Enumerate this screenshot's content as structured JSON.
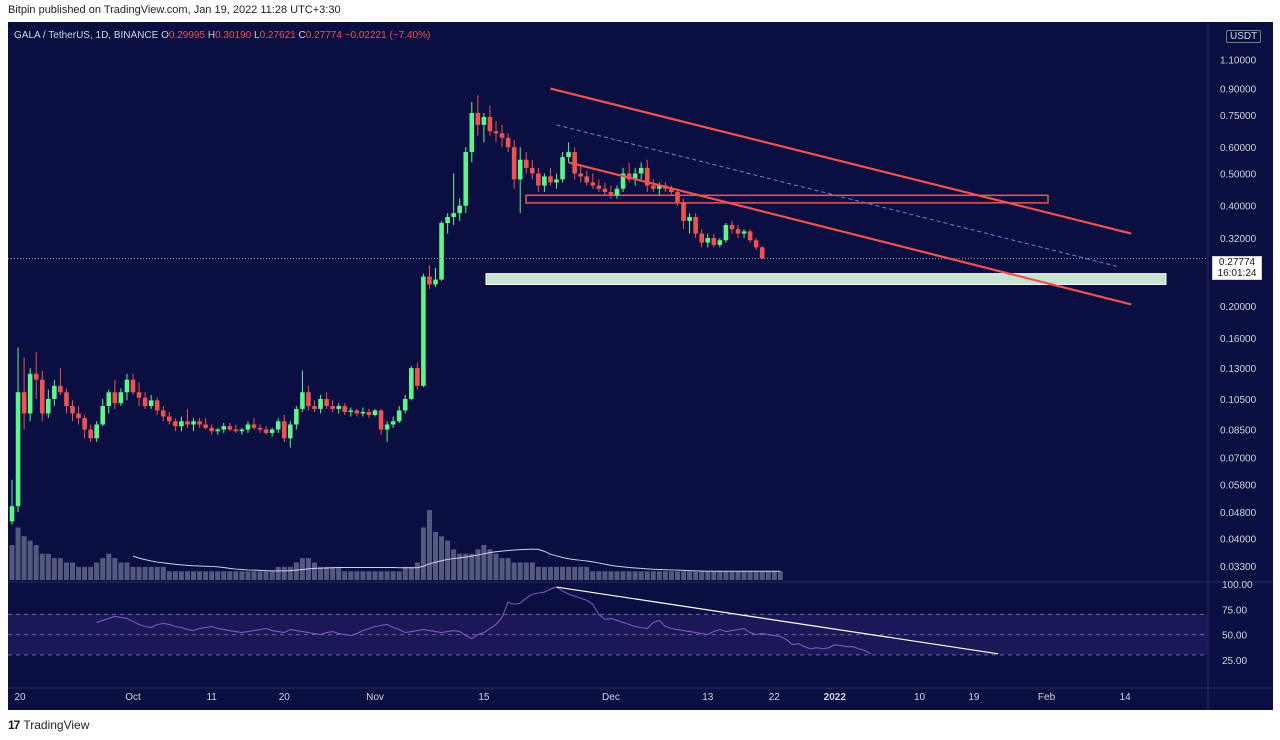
{
  "header": {
    "published_by": "Bitpin published on TradingView.com, Jan 19, 2022 11:28 UTC+3:30"
  },
  "symbol_legend": {
    "symbol": "GALA / TetherUS, 1D, BINANCE",
    "open_label": "O",
    "open": "0.29995",
    "high_label": "H",
    "high": "0.30190",
    "low_label": "L",
    "low": "0.27621",
    "close_label": "C",
    "close": "0.27774",
    "change": "−0.02221 (−7.40%)"
  },
  "price_axis": {
    "currency": "USDT",
    "current_price": "0.27774",
    "countdown": "16:01:24"
  },
  "footer": {
    "brand": "TradingView"
  },
  "colors": {
    "background": "#0a0e40",
    "up": "#5ef58a",
    "down": "#ef5350",
    "channel": "#ef5350",
    "support_zone_fill": "#c6e3d2",
    "rsi_line": "#7e57c2",
    "volume": "#6f7194"
  },
  "chart_data": [
    {
      "type": "candlestick",
      "title": "GALA / TetherUS, 1D, BINANCE",
      "scale": "log",
      "ylim": [
        0.03,
        1.35
      ],
      "y_ticks": [
        "1.10000",
        "0.90000",
        "0.75000",
        "0.60000",
        "0.50000",
        "0.40000",
        "0.32000",
        "0.20000",
        "0.16000",
        "0.13000",
        "0.10500",
        "0.08500",
        "0.07000",
        "0.05800",
        "0.04800",
        "0.04000",
        "0.03300"
      ],
      "y_tick_values": [
        1.1,
        0.9,
        0.75,
        0.6,
        0.5,
        0.4,
        0.32,
        0.2,
        0.16,
        0.13,
        0.105,
        0.085,
        0.07,
        0.058,
        0.048,
        0.04,
        0.033
      ],
      "x_ticks": [
        "20",
        "Oct",
        "11",
        "20",
        "Nov",
        "15",
        "Dec",
        "13",
        "22",
        "2022",
        "10",
        "19",
        "Feb",
        "14"
      ],
      "candles": [
        {
          "o": 0.045,
          "h": 0.06,
          "l": 0.044,
          "c": 0.05
        },
        {
          "o": 0.05,
          "h": 0.15,
          "l": 0.048,
          "c": 0.11
        },
        {
          "o": 0.11,
          "h": 0.14,
          "l": 0.085,
          "c": 0.095
        },
        {
          "o": 0.095,
          "h": 0.13,
          "l": 0.09,
          "c": 0.125
        },
        {
          "o": 0.125,
          "h": 0.145,
          "l": 0.105,
          "c": 0.12
        },
        {
          "o": 0.12,
          "h": 0.128,
          "l": 0.09,
          "c": 0.095
        },
        {
          "o": 0.095,
          "h": 0.112,
          "l": 0.092,
          "c": 0.105
        },
        {
          "o": 0.105,
          "h": 0.12,
          "l": 0.1,
          "c": 0.115
        },
        {
          "o": 0.115,
          "h": 0.13,
          "l": 0.108,
          "c": 0.11
        },
        {
          "o": 0.11,
          "h": 0.113,
          "l": 0.095,
          "c": 0.1
        },
        {
          "o": 0.1,
          "h": 0.104,
          "l": 0.09,
          "c": 0.095
        },
        {
          "o": 0.095,
          "h": 0.1,
          "l": 0.088,
          "c": 0.092
        },
        {
          "o": 0.092,
          "h": 0.094,
          "l": 0.08,
          "c": 0.085
        },
        {
          "o": 0.085,
          "h": 0.088,
          "l": 0.078,
          "c": 0.08
        },
        {
          "o": 0.08,
          "h": 0.09,
          "l": 0.078,
          "c": 0.088
        },
        {
          "o": 0.088,
          "h": 0.105,
          "l": 0.087,
          "c": 0.1
        },
        {
          "o": 0.1,
          "h": 0.112,
          "l": 0.095,
          "c": 0.11
        },
        {
          "o": 0.11,
          "h": 0.12,
          "l": 0.098,
          "c": 0.102
        },
        {
          "o": 0.102,
          "h": 0.113,
          "l": 0.1,
          "c": 0.11
        },
        {
          "o": 0.11,
          "h": 0.125,
          "l": 0.104,
          "c": 0.12
        },
        {
          "o": 0.12,
          "h": 0.125,
          "l": 0.108,
          "c": 0.11
        },
        {
          "o": 0.11,
          "h": 0.118,
          "l": 0.1,
          "c": 0.106
        },
        {
          "o": 0.106,
          "h": 0.11,
          "l": 0.098,
          "c": 0.1
        },
        {
          "o": 0.1,
          "h": 0.108,
          "l": 0.098,
          "c": 0.104
        },
        {
          "o": 0.104,
          "h": 0.106,
          "l": 0.094,
          "c": 0.097
        },
        {
          "o": 0.097,
          "h": 0.1,
          "l": 0.09,
          "c": 0.093
        },
        {
          "o": 0.093,
          "h": 0.096,
          "l": 0.088,
          "c": 0.09
        },
        {
          "o": 0.09,
          "h": 0.092,
          "l": 0.084,
          "c": 0.087
        },
        {
          "o": 0.087,
          "h": 0.093,
          "l": 0.084,
          "c": 0.09
        },
        {
          "o": 0.09,
          "h": 0.098,
          "l": 0.086,
          "c": 0.088
        },
        {
          "o": 0.088,
          "h": 0.092,
          "l": 0.084,
          "c": 0.09
        },
        {
          "o": 0.09,
          "h": 0.092,
          "l": 0.086,
          "c": 0.088
        },
        {
          "o": 0.088,
          "h": 0.092,
          "l": 0.085,
          "c": 0.086
        },
        {
          "o": 0.086,
          "h": 0.088,
          "l": 0.082,
          "c": 0.084
        },
        {
          "o": 0.084,
          "h": 0.086,
          "l": 0.082,
          "c": 0.085
        },
        {
          "o": 0.085,
          "h": 0.089,
          "l": 0.083,
          "c": 0.087
        },
        {
          "o": 0.087,
          "h": 0.089,
          "l": 0.084,
          "c": 0.085
        },
        {
          "o": 0.085,
          "h": 0.088,
          "l": 0.083,
          "c": 0.084
        },
        {
          "o": 0.084,
          "h": 0.086,
          "l": 0.082,
          "c": 0.085
        },
        {
          "o": 0.085,
          "h": 0.09,
          "l": 0.083,
          "c": 0.088
        },
        {
          "o": 0.088,
          "h": 0.092,
          "l": 0.085,
          "c": 0.086
        },
        {
          "o": 0.086,
          "h": 0.088,
          "l": 0.083,
          "c": 0.085
        },
        {
          "o": 0.085,
          "h": 0.087,
          "l": 0.082,
          "c": 0.083
        },
        {
          "o": 0.083,
          "h": 0.086,
          "l": 0.081,
          "c": 0.085
        },
        {
          "o": 0.085,
          "h": 0.092,
          "l": 0.083,
          "c": 0.09
        },
        {
          "o": 0.09,
          "h": 0.094,
          "l": 0.078,
          "c": 0.08
        },
        {
          "o": 0.08,
          "h": 0.09,
          "l": 0.075,
          "c": 0.088
        },
        {
          "o": 0.088,
          "h": 0.1,
          "l": 0.085,
          "c": 0.098
        },
        {
          "o": 0.098,
          "h": 0.128,
          "l": 0.096,
          "c": 0.11
        },
        {
          "o": 0.11,
          "h": 0.115,
          "l": 0.097,
          "c": 0.1
        },
        {
          "o": 0.1,
          "h": 0.104,
          "l": 0.096,
          "c": 0.098
        },
        {
          "o": 0.098,
          "h": 0.108,
          "l": 0.095,
          "c": 0.105
        },
        {
          "o": 0.105,
          "h": 0.11,
          "l": 0.098,
          "c": 0.1
        },
        {
          "o": 0.1,
          "h": 0.104,
          "l": 0.096,
          "c": 0.098
        },
        {
          "o": 0.098,
          "h": 0.102,
          "l": 0.095,
          "c": 0.1
        },
        {
          "o": 0.1,
          "h": 0.102,
          "l": 0.094,
          "c": 0.096
        },
        {
          "o": 0.096,
          "h": 0.099,
          "l": 0.093,
          "c": 0.097
        },
        {
          "o": 0.097,
          "h": 0.098,
          "l": 0.093,
          "c": 0.095
        },
        {
          "o": 0.095,
          "h": 0.099,
          "l": 0.093,
          "c": 0.096
        },
        {
          "o": 0.096,
          "h": 0.098,
          "l": 0.092,
          "c": 0.094
        },
        {
          "o": 0.094,
          "h": 0.098,
          "l": 0.093,
          "c": 0.097
        },
        {
          "o": 0.097,
          "h": 0.098,
          "l": 0.082,
          "c": 0.085
        },
        {
          "o": 0.085,
          "h": 0.09,
          "l": 0.078,
          "c": 0.088
        },
        {
          "o": 0.088,
          "h": 0.093,
          "l": 0.086,
          "c": 0.09
        },
        {
          "o": 0.09,
          "h": 0.1,
          "l": 0.089,
          "c": 0.097
        },
        {
          "o": 0.097,
          "h": 0.108,
          "l": 0.095,
          "c": 0.105
        },
        {
          "o": 0.105,
          "h": 0.132,
          "l": 0.104,
          "c": 0.13
        },
        {
          "o": 0.13,
          "h": 0.135,
          "l": 0.112,
          "c": 0.115
        },
        {
          "o": 0.115,
          "h": 0.25,
          "l": 0.114,
          "c": 0.245
        },
        {
          "o": 0.245,
          "h": 0.265,
          "l": 0.225,
          "c": 0.232
        },
        {
          "o": 0.232,
          "h": 0.26,
          "l": 0.228,
          "c": 0.24
        },
        {
          "o": 0.24,
          "h": 0.36,
          "l": 0.238,
          "c": 0.355
        },
        {
          "o": 0.355,
          "h": 0.38,
          "l": 0.33,
          "c": 0.37
        },
        {
          "o": 0.37,
          "h": 0.5,
          "l": 0.35,
          "c": 0.38
        },
        {
          "o": 0.38,
          "h": 0.42,
          "l": 0.36,
          "c": 0.4
        },
        {
          "o": 0.4,
          "h": 0.6,
          "l": 0.38,
          "c": 0.58
        },
        {
          "o": 0.58,
          "h": 0.82,
          "l": 0.54,
          "c": 0.76
        },
        {
          "o": 0.76,
          "h": 0.86,
          "l": 0.65,
          "c": 0.7
        },
        {
          "o": 0.7,
          "h": 0.76,
          "l": 0.62,
          "c": 0.74
        },
        {
          "o": 0.74,
          "h": 0.8,
          "l": 0.65,
          "c": 0.67
        },
        {
          "o": 0.67,
          "h": 0.72,
          "l": 0.62,
          "c": 0.66
        },
        {
          "o": 0.66,
          "h": 0.7,
          "l": 0.6,
          "c": 0.64
        },
        {
          "o": 0.64,
          "h": 0.66,
          "l": 0.58,
          "c": 0.6
        },
        {
          "o": 0.6,
          "h": 0.63,
          "l": 0.45,
          "c": 0.48
        },
        {
          "o": 0.48,
          "h": 0.6,
          "l": 0.38,
          "c": 0.55
        },
        {
          "o": 0.55,
          "h": 0.58,
          "l": 0.5,
          "c": 0.52
        },
        {
          "o": 0.52,
          "h": 0.55,
          "l": 0.48,
          "c": 0.5
        },
        {
          "o": 0.5,
          "h": 0.52,
          "l": 0.44,
          "c": 0.46
        },
        {
          "o": 0.46,
          "h": 0.5,
          "l": 0.44,
          "c": 0.49
        },
        {
          "o": 0.49,
          "h": 0.52,
          "l": 0.46,
          "c": 0.47
        },
        {
          "o": 0.47,
          "h": 0.5,
          "l": 0.45,
          "c": 0.48
        },
        {
          "o": 0.48,
          "h": 0.58,
          "l": 0.47,
          "c": 0.56
        },
        {
          "o": 0.56,
          "h": 0.62,
          "l": 0.54,
          "c": 0.58
        },
        {
          "o": 0.58,
          "h": 0.6,
          "l": 0.48,
          "c": 0.5
        },
        {
          "o": 0.5,
          "h": 0.53,
          "l": 0.47,
          "c": 0.49
        },
        {
          "o": 0.49,
          "h": 0.51,
          "l": 0.46,
          "c": 0.47
        },
        {
          "o": 0.47,
          "h": 0.5,
          "l": 0.45,
          "c": 0.46
        },
        {
          "o": 0.46,
          "h": 0.48,
          "l": 0.44,
          "c": 0.45
        },
        {
          "o": 0.45,
          "h": 0.47,
          "l": 0.43,
          "c": 0.44
        },
        {
          "o": 0.44,
          "h": 0.46,
          "l": 0.42,
          "c": 0.43
        },
        {
          "o": 0.43,
          "h": 0.46,
          "l": 0.42,
          "c": 0.45
        },
        {
          "o": 0.45,
          "h": 0.52,
          "l": 0.44,
          "c": 0.5
        },
        {
          "o": 0.5,
          "h": 0.54,
          "l": 0.47,
          "c": 0.48
        },
        {
          "o": 0.48,
          "h": 0.52,
          "l": 0.46,
          "c": 0.5
        },
        {
          "o": 0.5,
          "h": 0.54,
          "l": 0.48,
          "c": 0.52
        },
        {
          "o": 0.52,
          "h": 0.55,
          "l": 0.44,
          "c": 0.46
        },
        {
          "o": 0.46,
          "h": 0.48,
          "l": 0.44,
          "c": 0.45
        },
        {
          "o": 0.45,
          "h": 0.47,
          "l": 0.43,
          "c": 0.46
        },
        {
          "o": 0.46,
          "h": 0.47,
          "l": 0.44,
          "c": 0.45
        },
        {
          "o": 0.45,
          "h": 0.46,
          "l": 0.43,
          "c": 0.44
        },
        {
          "o": 0.44,
          "h": 0.45,
          "l": 0.4,
          "c": 0.41
        },
        {
          "o": 0.41,
          "h": 0.42,
          "l": 0.34,
          "c": 0.36
        },
        {
          "o": 0.36,
          "h": 0.38,
          "l": 0.33,
          "c": 0.37
        },
        {
          "o": 0.37,
          "h": 0.38,
          "l": 0.32,
          "c": 0.33
        },
        {
          "o": 0.33,
          "h": 0.34,
          "l": 0.3,
          "c": 0.31
        },
        {
          "o": 0.31,
          "h": 0.33,
          "l": 0.3,
          "c": 0.32
        },
        {
          "o": 0.32,
          "h": 0.33,
          "l": 0.3,
          "c": 0.305
        },
        {
          "o": 0.305,
          "h": 0.32,
          "l": 0.3,
          "c": 0.315
        },
        {
          "o": 0.315,
          "h": 0.355,
          "l": 0.31,
          "c": 0.35
        },
        {
          "o": 0.35,
          "h": 0.36,
          "l": 0.33,
          "c": 0.34
        },
        {
          "o": 0.34,
          "h": 0.35,
          "l": 0.32,
          "c": 0.33
        },
        {
          "o": 0.33,
          "h": 0.34,
          "l": 0.32,
          "c": 0.335
        },
        {
          "o": 0.335,
          "h": 0.34,
          "l": 0.31,
          "c": 0.315
        },
        {
          "o": 0.315,
          "h": 0.32,
          "l": 0.295,
          "c": 0.3
        },
        {
          "o": 0.3,
          "h": 0.302,
          "l": 0.276,
          "c": 0.278
        }
      ],
      "volume": [
        8,
        12,
        10,
        9,
        8,
        6,
        6,
        5,
        5,
        4,
        4,
        3,
        3,
        3,
        4,
        5,
        6,
        5,
        4,
        4,
        3,
        3,
        3,
        3,
        3,
        3,
        2,
        2,
        2,
        2,
        2,
        2,
        2,
        2,
        2,
        2,
        2,
        2,
        2,
        2,
        2,
        2,
        2,
        2,
        3,
        3,
        3,
        4,
        5,
        5,
        4,
        3,
        3,
        3,
        3,
        2,
        2,
        2,
        2,
        2,
        2,
        2,
        2,
        2,
        2,
        3,
        3,
        4,
        12,
        16,
        11,
        10,
        9,
        7,
        6,
        6,
        6,
        7,
        8,
        7,
        6,
        5,
        5,
        4,
        4,
        4,
        4,
        3,
        3,
        3,
        3,
        3,
        3,
        3,
        3,
        3,
        2,
        2,
        2,
        2,
        2,
        2,
        2,
        2,
        2,
        2,
        2,
        2,
        2,
        2,
        2,
        2,
        2,
        2,
        2,
        2,
        2,
        2,
        2,
        2,
        2,
        2,
        2,
        2,
        2,
        2,
        2,
        2
      ],
      "support_zone": {
        "from": 0.232,
        "to": 0.25
      },
      "resistance_zone": {
        "from": 0.408,
        "to": 0.43
      },
      "current_price": 0.27774
    },
    {
      "type": "line",
      "title": "RSI",
      "ylim": [
        15,
        100
      ],
      "y_ticks": [
        "100.00",
        "75.00",
        "50.00",
        "25.00"
      ],
      "y_tick_values": [
        100,
        75,
        50,
        25
      ],
      "rsi": [
        62,
        64,
        66,
        68,
        67,
        66,
        63,
        60,
        58,
        57,
        60,
        61,
        60,
        58,
        57,
        55,
        54,
        56,
        57,
        58,
        56,
        55,
        54,
        53,
        52,
        53,
        54,
        55,
        56,
        54,
        53,
        52,
        55,
        54,
        53,
        52,
        51,
        50,
        52,
        53,
        51,
        50,
        49,
        51,
        54,
        56,
        58,
        59,
        60,
        57,
        55,
        52,
        53,
        54,
        55,
        54,
        53,
        52,
        53,
        54,
        53,
        49,
        46,
        50,
        52,
        56,
        60,
        67,
        82,
        80,
        81,
        86,
        90,
        91,
        92,
        95,
        97,
        93,
        90,
        88,
        86,
        84,
        80,
        70,
        65,
        66,
        64,
        62,
        60,
        58,
        57,
        56,
        62,
        64,
        58,
        56,
        55,
        54,
        53,
        52,
        51,
        50,
        53,
        55,
        53,
        54,
        55,
        56,
        52,
        50,
        51,
        50,
        49,
        48,
        45,
        40,
        41,
        38,
        36,
        37,
        36,
        37,
        40,
        39,
        38,
        38,
        36,
        34,
        31
      ]
    }
  ]
}
